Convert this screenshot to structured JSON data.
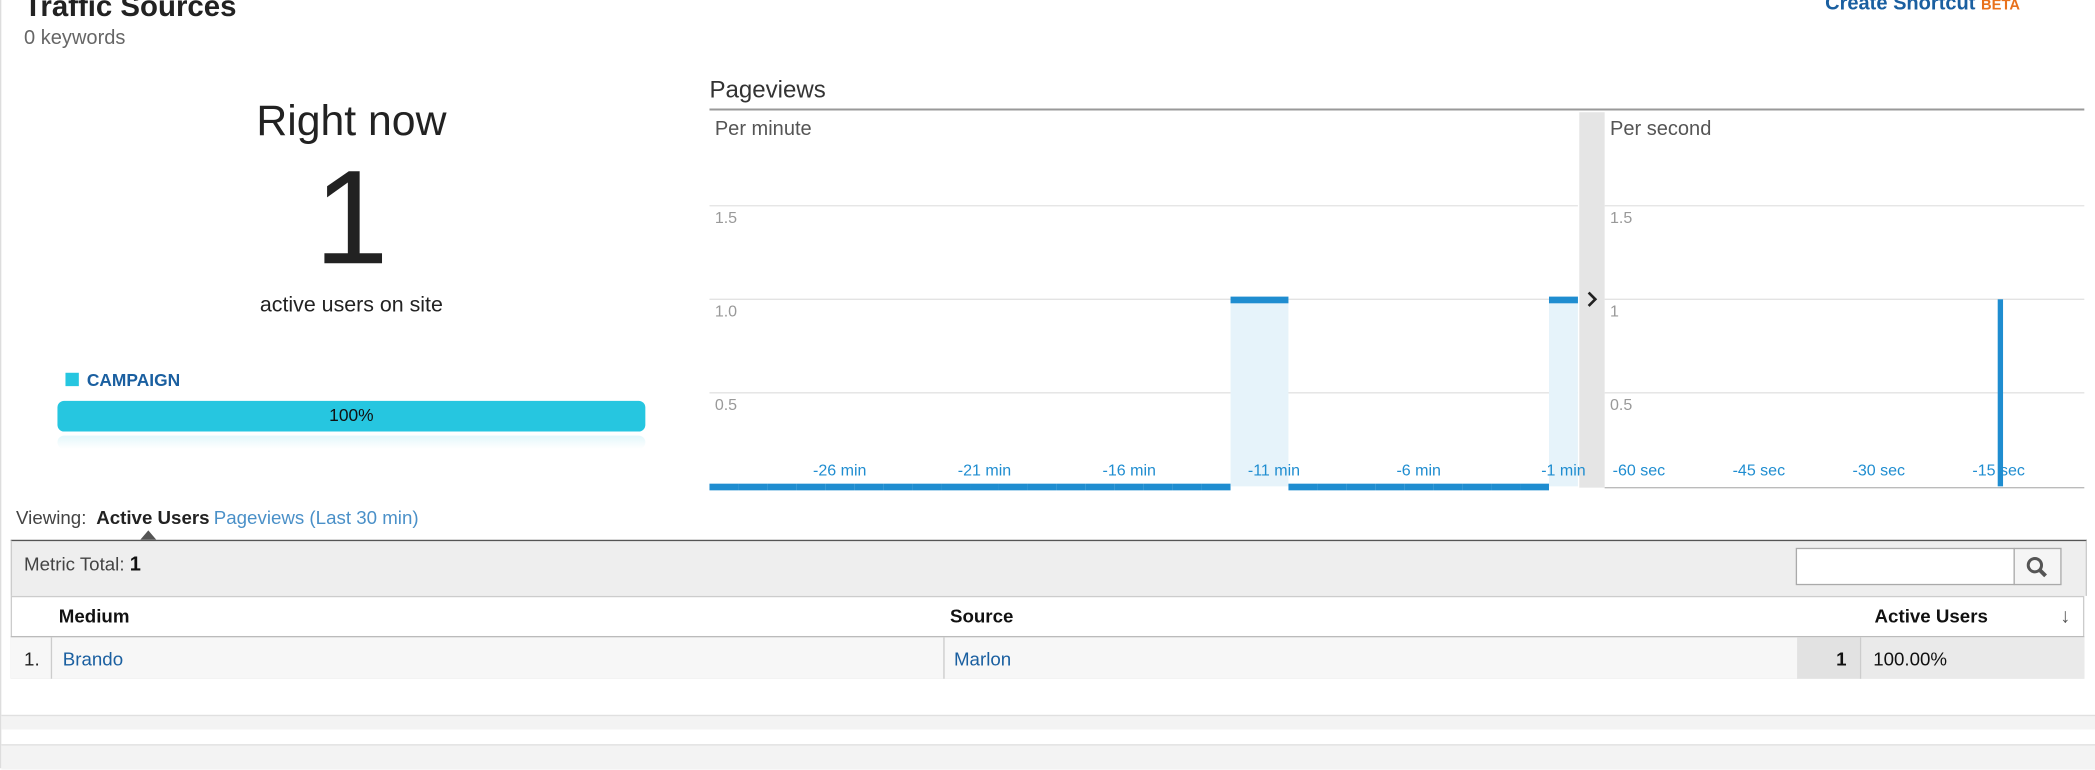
{
  "header": {
    "title": "Traffic Sources",
    "subtitle": "0 keywords",
    "shortcut": "Create Shortcut",
    "beta": "BETA"
  },
  "right_now": {
    "heading": "Right now",
    "count": 1,
    "caption": "active users on site",
    "legend": "CAMPAIGN",
    "share": 100,
    "share_label": "100%"
  },
  "pageviews": {
    "title": "Pageviews"
  },
  "chart_data": [
    {
      "type": "bar",
      "title": "Per minute",
      "color": "#1f8dd0",
      "highlight": "#e6f3fa",
      "categories": [
        null,
        null,
        null,
        null,
        "-26 min",
        null,
        null,
        null,
        null,
        "-21 min",
        null,
        null,
        null,
        null,
        "-16 min",
        null,
        null,
        null,
        null,
        "-11 min",
        null,
        null,
        null,
        null,
        "-6 min",
        null,
        null,
        null,
        null,
        "-1 min"
      ],
      "values": [
        0,
        0,
        0,
        0,
        0,
        0,
        0,
        0,
        0,
        0,
        0,
        0,
        0,
        0,
        0,
        0,
        0,
        0,
        1,
        1,
        0,
        0,
        0,
        0,
        0,
        0,
        0,
        0,
        0,
        1
      ],
      "ylim": [
        0,
        2
      ],
      "yticks": [
        {
          "value": 0.5,
          "label": "0.5"
        },
        {
          "value": 1,
          "label": "1.0"
        },
        {
          "value": 1.5,
          "label": "1.5"
        }
      ],
      "grid": true
    },
    {
      "type": "bar",
      "title": "Per second",
      "color": "#1f8dd0",
      "categories": [
        "-60 sec",
        null,
        null,
        null,
        null,
        null,
        null,
        null,
        null,
        null,
        null,
        null,
        null,
        null,
        null,
        "-45 sec",
        null,
        null,
        null,
        null,
        null,
        null,
        null,
        null,
        null,
        null,
        null,
        null,
        null,
        null,
        "-30 sec",
        null,
        null,
        null,
        null,
        null,
        null,
        null,
        null,
        null,
        null,
        null,
        null,
        null,
        null,
        "-15 sec",
        null,
        null,
        null,
        null,
        null,
        null,
        null,
        null,
        null,
        null,
        null,
        null,
        null,
        null
      ],
      "values": [
        0,
        0,
        0,
        0,
        0,
        0,
        0,
        0,
        0,
        0,
        0,
        0,
        0,
        0,
        0,
        0,
        0,
        0,
        0,
        0,
        0,
        0,
        0,
        0,
        0,
        0,
        0,
        0,
        0,
        0,
        0,
        0,
        0,
        0,
        0,
        0,
        0,
        0,
        0,
        0,
        0,
        0,
        0,
        0,
        0,
        0,
        0,
        0,
        0,
        1,
        0,
        0,
        0,
        0,
        0,
        0,
        0,
        0,
        0,
        0
      ],
      "ylim": [
        0,
        2
      ],
      "yticks": [
        0.5,
        1,
        1.5
      ],
      "grid": true
    }
  ],
  "table": {
    "viewing": "Viewing:",
    "tabs": [
      "Active Users",
      "Pageviews (Last 30 min)"
    ],
    "metric_label": "Metric Total:",
    "metric_total": 1,
    "columns": [
      "Medium",
      "Source",
      "Active Users"
    ],
    "rows": [
      [
        "1.",
        "Brando",
        "Marlon",
        1,
        "100.00%"
      ]
    ]
  }
}
